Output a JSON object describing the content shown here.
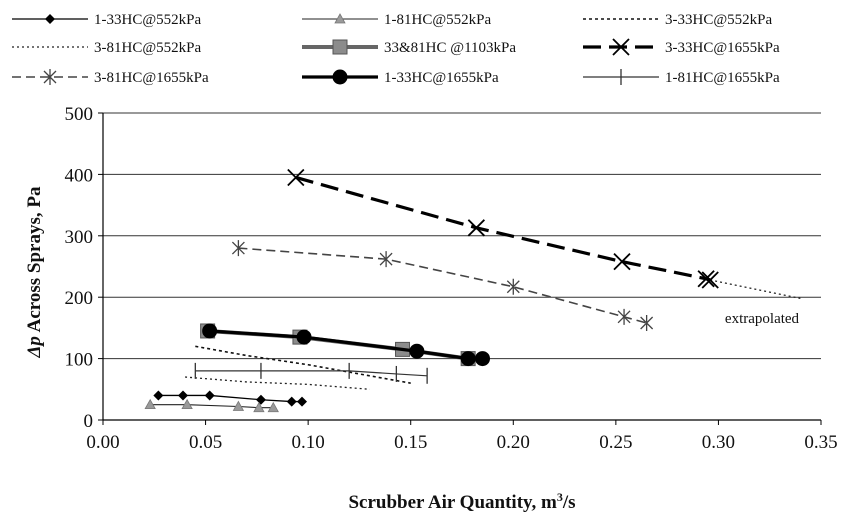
{
  "chart_data": {
    "type": "line",
    "xlabel_prefix": "Scrubber Air Quantity, m",
    "xlabel_sup": "3",
    "xlabel_suffix": "/s",
    "ylabel_sym": "Δp",
    "ylabel_rest": " Across Sprays, Pa",
    "xlim": [
      0,
      0.35
    ],
    "ylim": [
      0,
      500
    ],
    "x_ticks": [
      0.0,
      0.05,
      0.1,
      0.15,
      0.2,
      0.25,
      0.3,
      0.35
    ],
    "x_tick_labels": [
      "0.00",
      "0.05",
      "0.10",
      "0.15",
      "0.20",
      "0.25",
      "0.30",
      "0.35"
    ],
    "y_ticks": [
      0,
      100,
      200,
      300,
      400,
      500
    ],
    "y_tick_labels": [
      "0",
      "100",
      "200",
      "300",
      "400",
      "500"
    ],
    "grid": "horizontal",
    "legend_position": "top",
    "annotation": "extrapolated",
    "series": [
      {
        "name": "1-33HC@552kPa",
        "color": "#000000",
        "width": 1.3,
        "dash": "",
        "marker": "diamond",
        "x": [
          0.027,
          0.039,
          0.052,
          0.077,
          0.092,
          0.097
        ],
        "y": [
          40,
          40,
          40,
          33,
          30,
          30
        ]
      },
      {
        "name": "1-81HC@552kPa",
        "color": "#222222",
        "width": 1.1,
        "dash": "",
        "marker": "triangle",
        "x": [
          0.023,
          0.041,
          0.066,
          0.076,
          0.083
        ],
        "y": [
          25,
          25,
          22,
          20,
          20
        ]
      },
      {
        "name": "3-33HC@552kPa",
        "color": "#111111",
        "width": 1.6,
        "dash": "3,3",
        "marker": "none",
        "x": [
          0.045,
          0.07,
          0.1,
          0.13,
          0.15
        ],
        "y": [
          120,
          105,
          90,
          72,
          60
        ]
      },
      {
        "name": "3-81HC@552kPa",
        "color": "#222222",
        "width": 1.3,
        "dash": "2,3",
        "marker": "none",
        "x": [
          0.04,
          0.07,
          0.1,
          0.13
        ],
        "y": [
          70,
          62,
          58,
          50
        ]
      },
      {
        "name": "33&81HC @1103kPa",
        "color": "#666666",
        "width": 4,
        "dash": "",
        "marker": "square",
        "x": [
          0.051,
          0.096,
          0.146,
          0.178
        ],
        "y": [
          145,
          135,
          115,
          100
        ]
      },
      {
        "name": "3-33HC@1655kPa",
        "color": "#000000",
        "width": 3.2,
        "dash": "18,8",
        "marker": "x",
        "x": [
          0.094,
          0.182,
          0.253,
          0.294,
          0.296
        ],
        "y": [
          395,
          313,
          258,
          230,
          228
        ]
      },
      {
        "name": "3-81HC@1655kPa",
        "color": "#444444",
        "width": 1.6,
        "dash": "9,5",
        "marker": "star",
        "x": [
          0.066,
          0.138,
          0.2,
          0.254,
          0.265
        ],
        "y": [
          280,
          262,
          217,
          168,
          158
        ]
      },
      {
        "name": "1-33HC@1655kPa",
        "color": "#000000",
        "width": 3.2,
        "dash": "",
        "marker": "circle",
        "x": [
          0.052,
          0.098,
          0.153,
          0.178,
          0.185
        ],
        "y": [
          145,
          135,
          112,
          100,
          100
        ]
      },
      {
        "name": "1-81HC@1655kPa",
        "color": "#333333",
        "width": 1.2,
        "dash": "",
        "marker": "plus",
        "x": [
          0.045,
          0.077,
          0.12,
          0.143,
          0.158
        ],
        "y": [
          80,
          80,
          80,
          75,
          72
        ]
      }
    ],
    "extrapolation": {
      "x": [
        0.296,
        0.34
      ],
      "y": [
        228,
        198
      ],
      "color": "#222222",
      "dash": "2,3"
    }
  }
}
